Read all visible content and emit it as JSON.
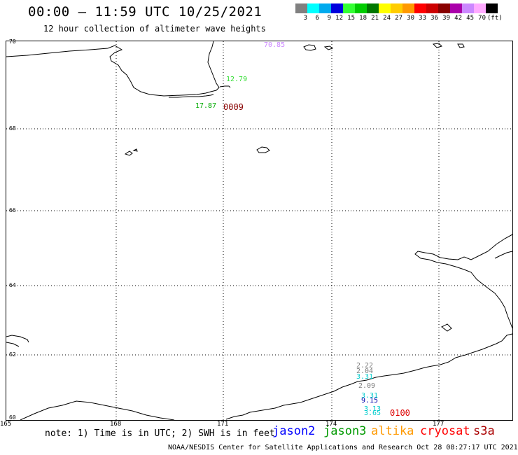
{
  "header": {
    "title": "00:00 – 11:59 UTC 10/25/2021",
    "subtitle": "12 hour collection of altimeter wave heights"
  },
  "legend": {
    "colors": [
      "#808080",
      "#00ffff",
      "#00aaee",
      "#0000dd",
      "#33ff33",
      "#00cc00",
      "#007700",
      "#ffff00",
      "#ffcc00",
      "#ff9900",
      "#ff0000",
      "#cc0000",
      "#880000",
      "#aa00aa",
      "#cc88ff",
      "#ffaaff",
      "#000000"
    ],
    "labels": [
      "3",
      "6",
      "9",
      "12",
      "15",
      "18",
      "21",
      "24",
      "27",
      "30",
      "33",
      "36",
      "39",
      "42",
      "45",
      "70"
    ],
    "unit": "(ft)"
  },
  "axes": {
    "lat_labels": [
      "70",
      "68",
      "66",
      "64",
      "62",
      "60"
    ],
    "lon_labels": [
      "165",
      "168",
      "171",
      "174",
      "177"
    ]
  },
  "observations": [
    {
      "text": "70.85",
      "color": "#cc88ff"
    },
    {
      "text": "12.79",
      "color": "#33dd33"
    },
    {
      "text": "17.87",
      "color": "#00aa00"
    },
    {
      "text": "0009",
      "color": "#880000"
    },
    {
      "text": "2.22",
      "color": "#808080"
    },
    {
      "text": "2.04",
      "color": "#808080"
    },
    {
      "text": "3.31",
      "color": "#00cccc"
    },
    {
      "text": "2.09",
      "color": "#808080"
    },
    {
      "text": "3.31",
      "color": "#00cccc"
    },
    {
      "text": "9.15",
      "color": "#0000aa"
    },
    {
      "text": "3.13",
      "color": "#00cccc"
    },
    {
      "text": "3.65",
      "color": "#00cccc"
    },
    {
      "text": "0100",
      "color": "#dd0000"
    }
  ],
  "note": "note: 1) Time is in UTC; 2) SWH is in feet",
  "satellites": [
    {
      "name": "jason2",
      "color": "#0000ff"
    },
    {
      "name": "jason3",
      "color": "#009900"
    },
    {
      "name": "altika",
      "color": "#ff9900"
    },
    {
      "name": "cryosat",
      "color": "#ff0000"
    },
    {
      "name": "s3a",
      "color": "#aa0000"
    }
  ],
  "footer": "NOAA/NESDIS Center for Satellite Applications and Research   Oct 28 08:27:17 UTC 2021"
}
